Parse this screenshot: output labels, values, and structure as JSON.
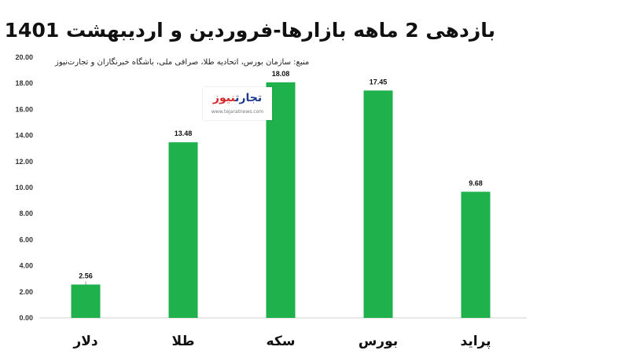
{
  "chart_data": {
    "type": "bar",
    "title": "بازدهی 2 ماهه بازارها-فروردین و اردیبهشت 1401",
    "source": "منبع: سازمان بورس، اتحادیه طلا، صرافی ملی، باشگاه خبرنگاران و تجارت‌نیوز",
    "categories": [
      "دلار",
      "طلا",
      "سکه",
      "بورس",
      "پراید"
    ],
    "values": [
      2.56,
      13.48,
      18.08,
      17.45,
      9.68
    ],
    "data_labels": [
      "2.56",
      "13.48",
      "18.08",
      "17.45",
      "9.68"
    ],
    "ylim": [
      0,
      20
    ],
    "yticks": [
      "0.00",
      "2.00",
      "4.00",
      "6.00",
      "8.00",
      "10.00",
      "12.00",
      "14.00",
      "16.00",
      "18.00",
      "20.00"
    ],
    "xlabel": "",
    "ylabel": "",
    "grid": false,
    "legend": "none",
    "bar_color": "#1fb14c"
  },
  "logo": {
    "name_part1": "تجارت",
    "name_part2": "نیوز",
    "url": "www.tejaratnews.com"
  }
}
